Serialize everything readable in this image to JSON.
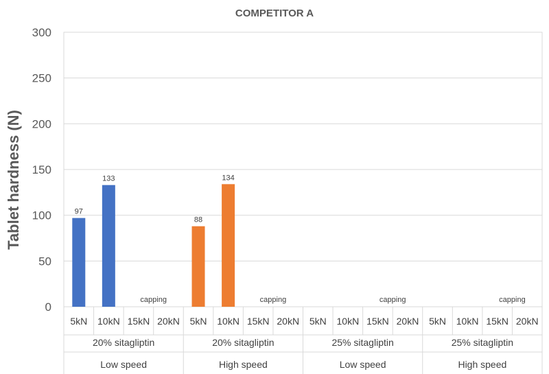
{
  "chart_data": {
    "type": "bar",
    "title": "COMPETITOR A",
    "ylabel": "Tablet hardness (N)",
    "ylim": [
      0,
      300
    ],
    "yticks": [
      0,
      50,
      100,
      150,
      200,
      250,
      300
    ],
    "grid": true,
    "categories": [
      "5kN",
      "10kN",
      "15kN",
      "20kN",
      "5kN",
      "10kN",
      "15kN",
      "20kN",
      "5kN",
      "10kN",
      "15kN",
      "20kN",
      "5kN",
      "10kN",
      "15kN",
      "20kN"
    ],
    "groups": [
      {
        "formulation": "20% sitagliptin",
        "speed": "Low speed",
        "color": "#4472C4",
        "values": [
          97,
          133,
          null,
          null
        ],
        "note": "capping"
      },
      {
        "formulation": "20% sitagliptin",
        "speed": "High speed",
        "color": "#ED7D31",
        "values": [
          88,
          134,
          null,
          null
        ],
        "note": "capping"
      },
      {
        "formulation": "25% sitagliptin",
        "speed": "Low speed",
        "color": "#4472C4",
        "values": [
          null,
          null,
          null,
          null
        ],
        "note": "capping"
      },
      {
        "formulation": "25% sitagliptin",
        "speed": "High speed",
        "color": "#ED7D31",
        "values": [
          null,
          null,
          null,
          null
        ],
        "note": "capping"
      }
    ]
  }
}
